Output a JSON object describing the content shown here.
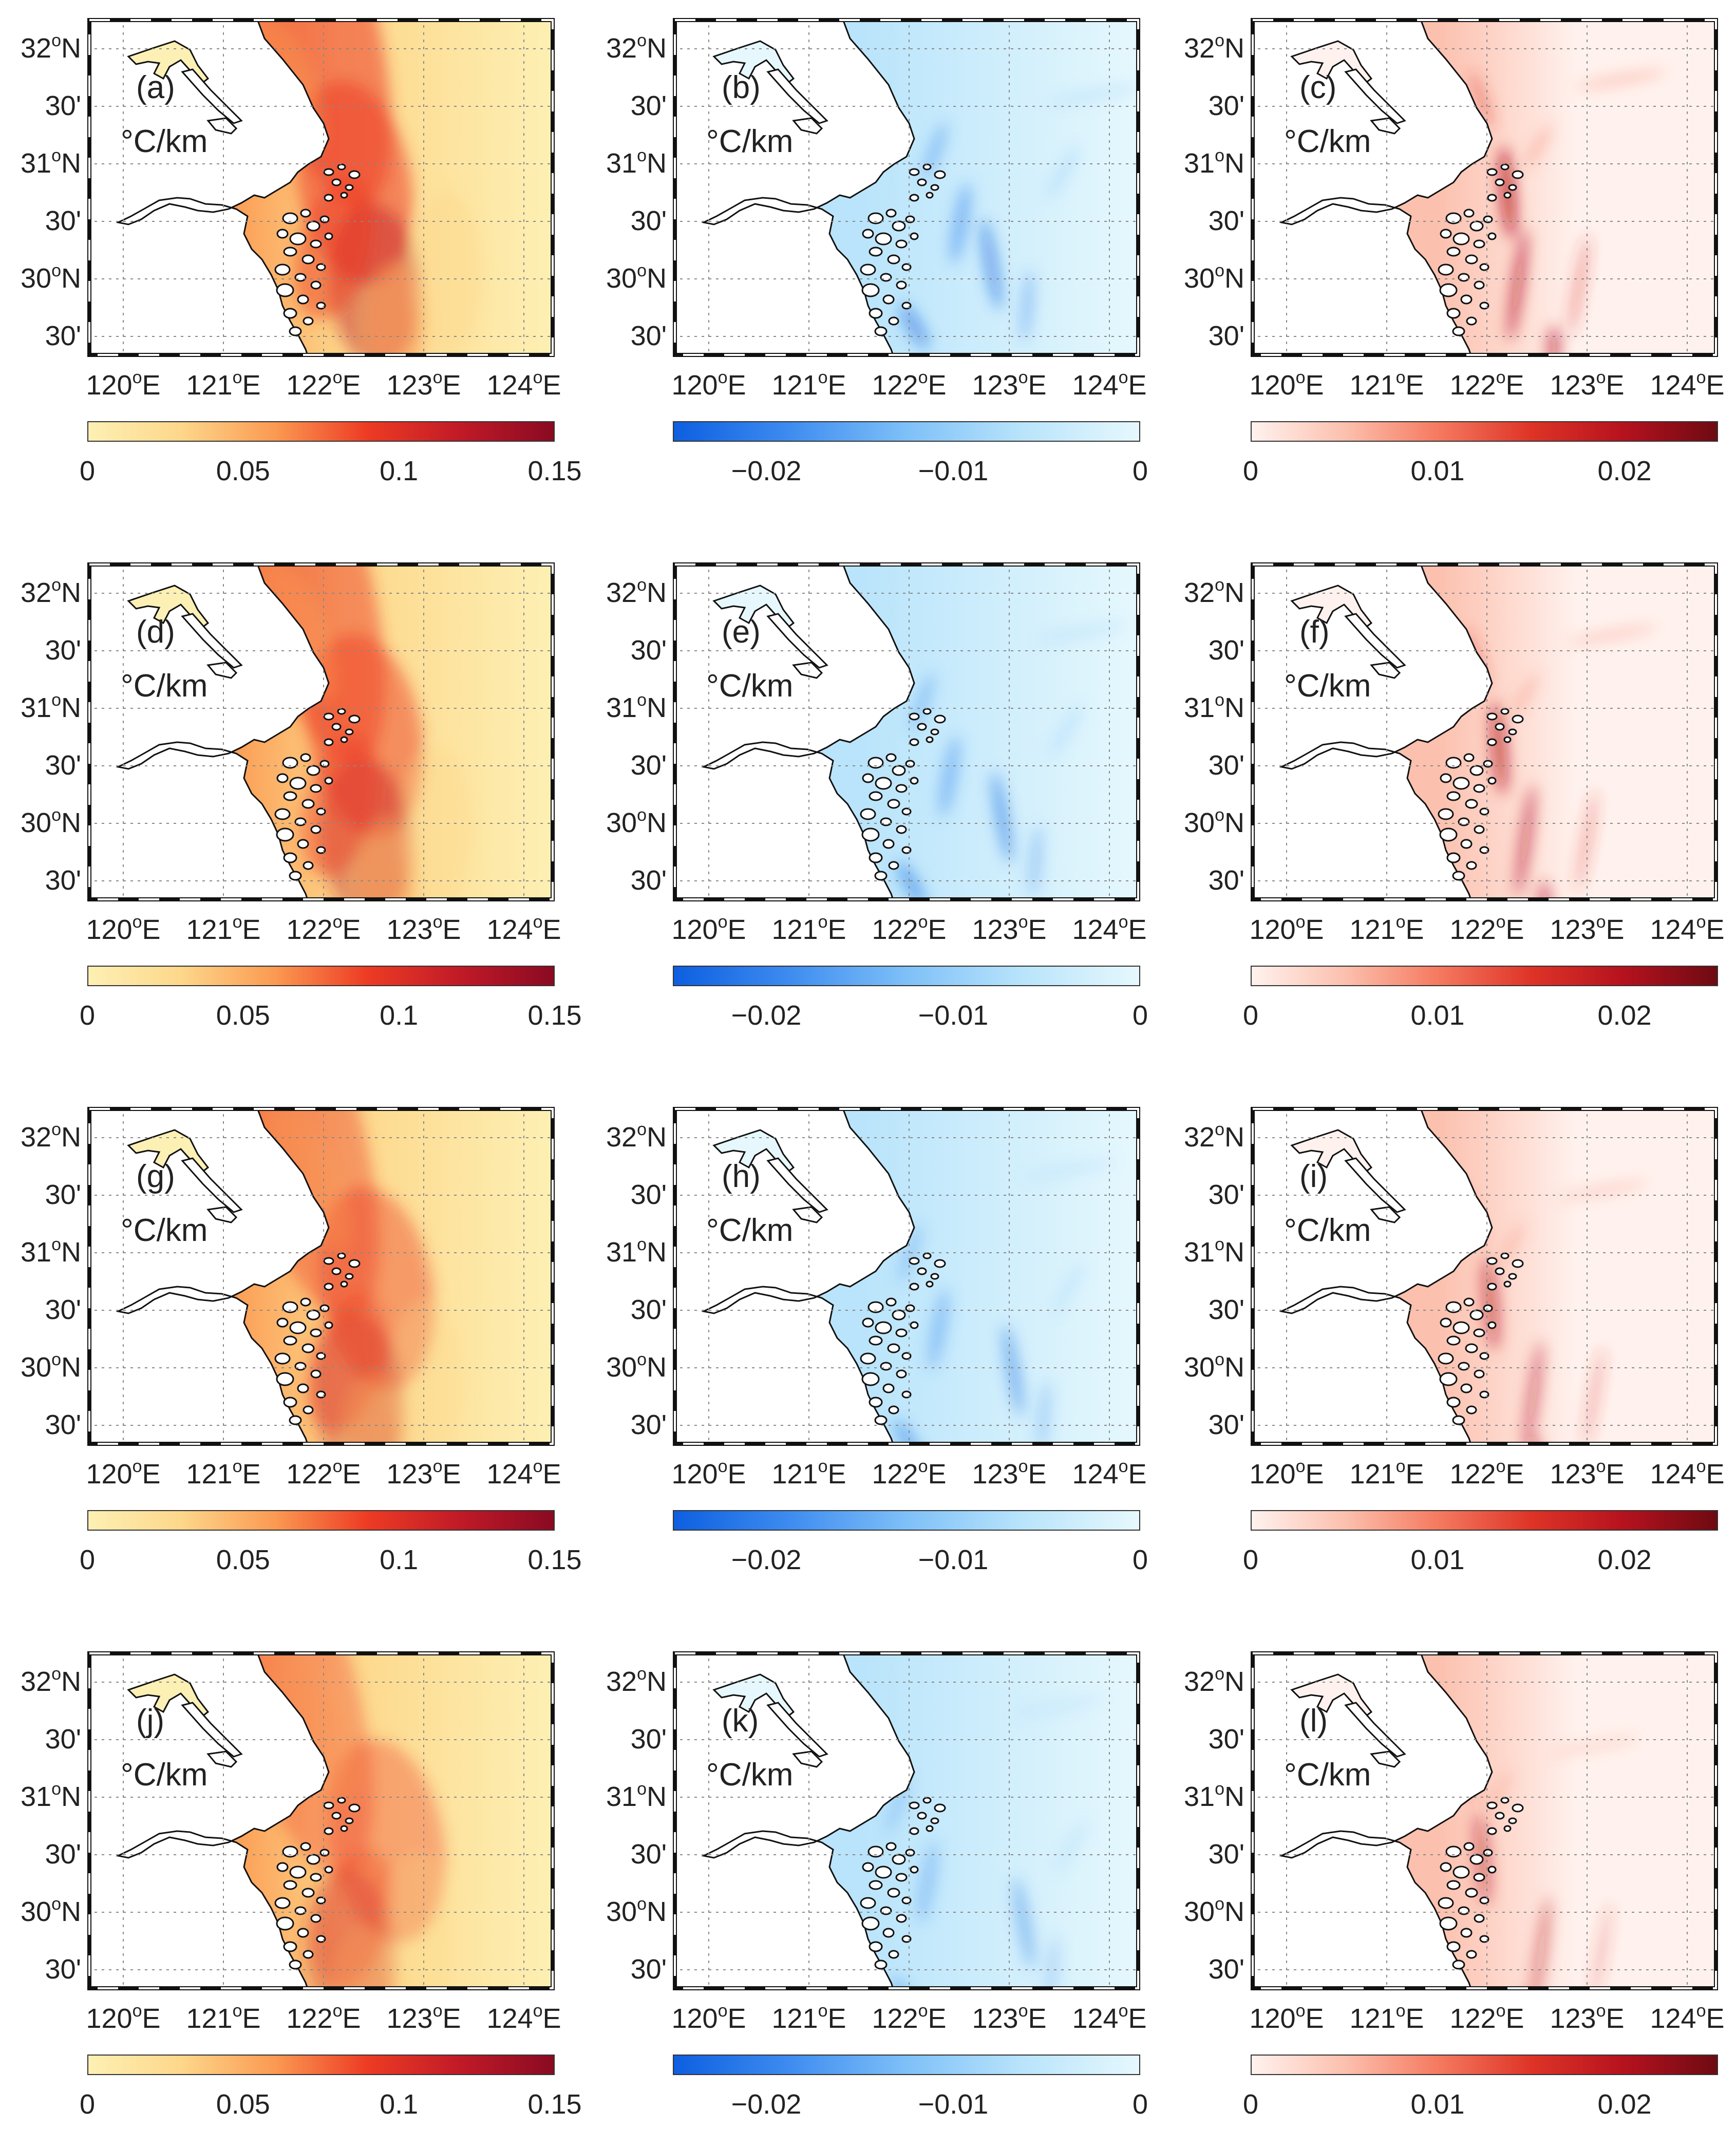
{
  "figure": {
    "lat_labels": [
      "32°N",
      "30'",
      "31°N",
      "30'",
      "30°N",
      "30'"
    ],
    "lon_labels": [
      "120°E",
      "121°E",
      "122°E",
      "123°E",
      "124°E"
    ],
    "unit": "°C/km",
    "colormaps": {
      "total": {
        "ticks": [
          "0",
          "0.05",
          "0.1",
          "0.15"
        ],
        "stops": [
          "#fdf0b4",
          "#fdd78a",
          "#fb9a52",
          "#ed3b24",
          "#c01a27",
          "#8a0a22"
        ]
      },
      "negative": {
        "ticks": [
          "−0.02",
          "−0.01",
          "0"
        ],
        "stops": [
          "#0d5fe0",
          "#3e8cf0",
          "#7ec0f8",
          "#b9e4fb",
          "#e6f8fd"
        ]
      },
      "positive": {
        "ticks": [
          "0",
          "0.01",
          "0.02"
        ],
        "stops": [
          "#fff2ee",
          "#fcc0ae",
          "#f57a60",
          "#de3427",
          "#b5121e",
          "#6e0a12"
        ]
      }
    },
    "rows": [
      {
        "panels": [
          {
            "label": "(a)",
            "type": "total"
          },
          {
            "label": "(b)",
            "type": "negative"
          },
          {
            "label": "(c)",
            "type": "positive"
          }
        ]
      },
      {
        "panels": [
          {
            "label": "(d)",
            "type": "total"
          },
          {
            "label": "(e)",
            "type": "negative"
          },
          {
            "label": "(f)",
            "type": "positive"
          }
        ]
      },
      {
        "panels": [
          {
            "label": "(g)",
            "type": "total"
          },
          {
            "label": "(h)",
            "type": "negative"
          },
          {
            "label": "(i)",
            "type": "positive"
          }
        ]
      },
      {
        "panels": [
          {
            "label": "(j)",
            "type": "total"
          },
          {
            "label": "(k)",
            "type": "negative"
          },
          {
            "label": "(l)",
            "type": "positive"
          }
        ]
      }
    ]
  }
}
